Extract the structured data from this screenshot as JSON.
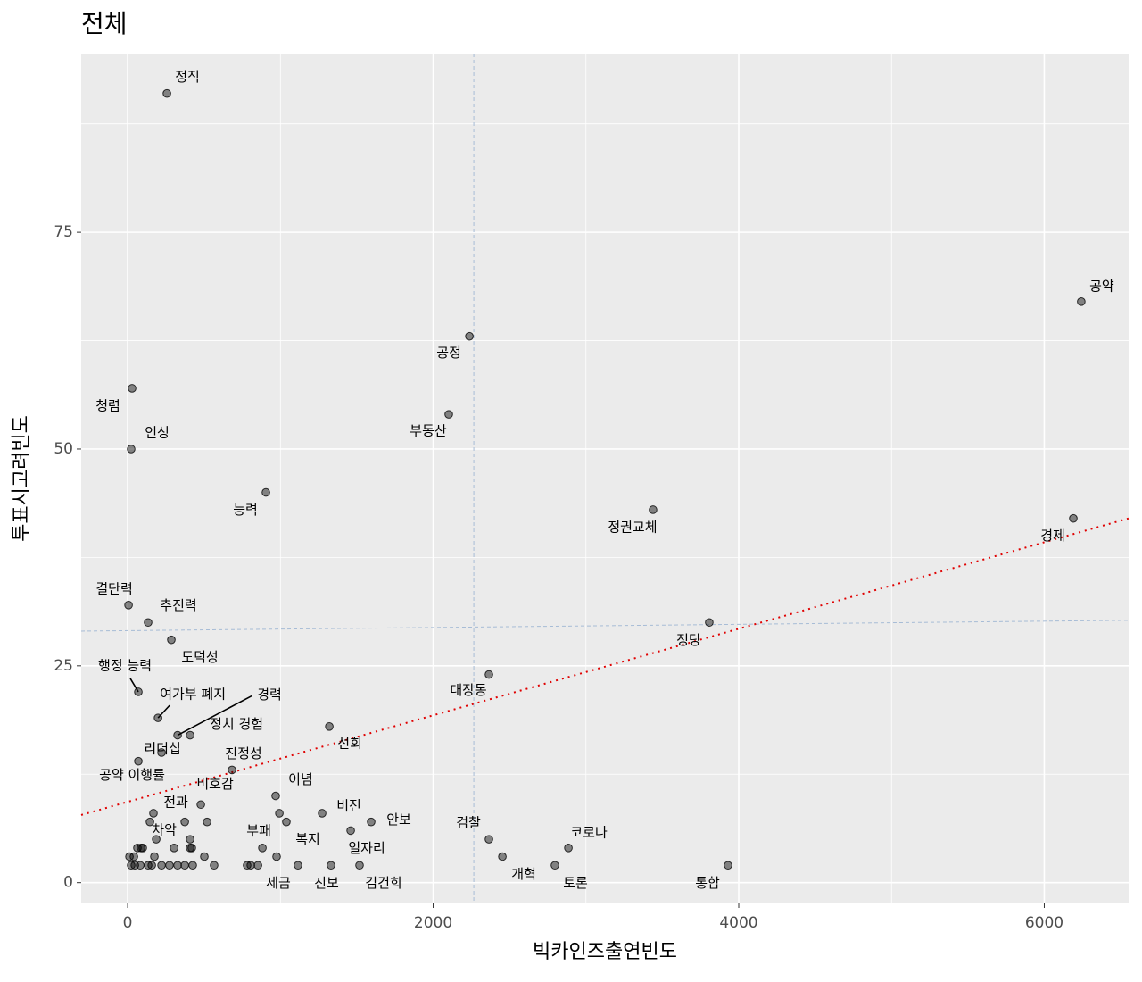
{
  "chart_data": {
    "type": "scatter",
    "title": "전체",
    "x_label": "빅카인즈출연빈도",
    "y_label": "투표시고려빈도",
    "xlim": [
      -304,
      6552
    ],
    "ylim": [
      -2.4,
      95.6
    ],
    "xticks": [
      0,
      2000,
      4000,
      6000
    ],
    "yticks": [
      0,
      25,
      50,
      75
    ],
    "x_minor_grid": [
      1000,
      3000,
      5000
    ],
    "y_minor_grid": [
      12.5,
      37.5,
      62.5,
      87.5
    ],
    "grid": true,
    "panel_color": "#EBEBEB",
    "point_color": "#000000",
    "vline_x": 2266,
    "vline_color": "#A7BCD6",
    "hline": {
      "x": [
        -304,
        6552
      ],
      "y": [
        29,
        30.25
      ],
      "color": "#A7BCD6"
    },
    "trend": {
      "x": [
        -304,
        6552
      ],
      "y": [
        7.8,
        42
      ],
      "color": "#E00000"
    },
    "x": [
      257,
      6242,
      2237,
      29,
      2102,
      23,
      905,
      3439,
      6190,
      6,
      134,
      3807,
      286,
      2365,
      70,
      199,
      327,
      409,
      1320,
      222,
      683,
      70,
      969,
      479,
      169,
      1273,
      1594,
      2365,
      2885,
      187,
      882,
      975,
      1460,
      2453,
      1115,
      1331,
      1518,
      2797,
      3930,
      12,
      41,
      23,
      47,
      64,
      88,
      99,
      82,
      134,
      158,
      146,
      175,
      222,
      274,
      304,
      327,
      374,
      374,
      409,
      409,
      426,
      420,
      502,
      520,
      566,
      782,
      806,
      853,
      1039,
      993
    ],
    "y": [
      91,
      67,
      63,
      57,
      54,
      50,
      45,
      43,
      42,
      32,
      30,
      30,
      28,
      24,
      22,
      19,
      17,
      17,
      18,
      15,
      13,
      14,
      10,
      9,
      8,
      8,
      7,
      5,
      4,
      5,
      4,
      3,
      6,
      3,
      2,
      2,
      2,
      2,
      2,
      3,
      3,
      2,
      2,
      4,
      4,
      4,
      2,
      2,
      2,
      7,
      3,
      2,
      2,
      4,
      2,
      7,
      2,
      5,
      4,
      2,
      4,
      3,
      7,
      2,
      2,
      2,
      2,
      7,
      8
    ],
    "labels": [
      "정직",
      "공약",
      "공정",
      "청렴",
      "부동산",
      "인성",
      "능력",
      "정권교체",
      "경제",
      "결단력",
      "추진력",
      "정당",
      "도덕성",
      "대장동",
      "행정 능력",
      "여가부 폐지",
      "경력",
      "정치 경험",
      "선회",
      "리더십",
      "진정성",
      "공약 이행률",
      "이념",
      "비호감",
      "전과",
      "비전",
      "안보",
      "검찰",
      "코로나",
      "차악",
      "부패",
      "복지",
      "일자리",
      "개혁",
      "세금",
      "진보",
      "김건희",
      "토론",
      "통합",
      null,
      null,
      null,
      null,
      null,
      null,
      null,
      null,
      null,
      null,
      null,
      null,
      null,
      null,
      null,
      null,
      null,
      null,
      null,
      null,
      null,
      null,
      null,
      null,
      null,
      null,
      null,
      null,
      null,
      null
    ]
  }
}
